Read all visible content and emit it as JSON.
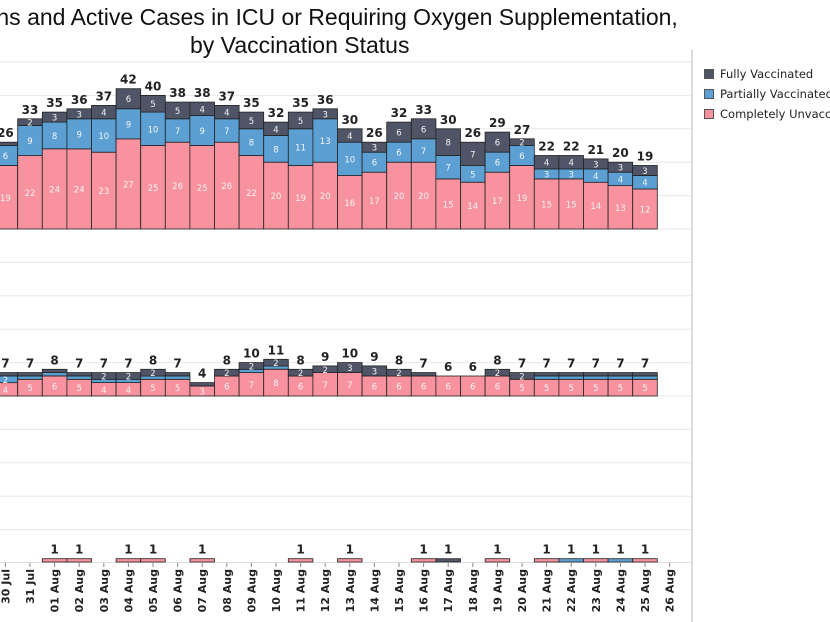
{
  "title": {
    "line1": "ths and Active Cases in ICU or Requiring Oxygen Supplementation,",
    "line2": "by Vaccination Status"
  },
  "legend": [
    {
      "name": "Fully Vaccinated",
      "color": "#4f5566"
    },
    {
      "name": "Partially Vaccinated",
      "color": "#5b9fd3"
    },
    {
      "name": "Completely Unvaccinated",
      "color": "#f7929e"
    }
  ],
  "chart_data": {
    "type": "bar",
    "stacked": true,
    "categories": [
      "30 Jul",
      "31 Jul",
      "01 Aug",
      "02 Aug",
      "03 Aug",
      "04 Aug",
      "05 Aug",
      "06 Aug",
      "07 Aug",
      "08 Aug",
      "09 Aug",
      "10 Aug",
      "11 Aug",
      "12 Aug",
      "13 Aug",
      "14 Aug",
      "15 Aug",
      "16 Aug",
      "17 Aug",
      "18 Aug",
      "19 Aug",
      "20 Aug",
      "21 Aug",
      "22 Aug",
      "23 Aug",
      "24 Aug",
      "25 Aug",
      "26 Aug"
    ],
    "ylim": [
      0,
      50
    ],
    "grid": true,
    "legend_position": "right",
    "panels": [
      {
        "totals": [
          26,
          33,
          35,
          36,
          37,
          42,
          40,
          38,
          38,
          37,
          35,
          32,
          35,
          36,
          30,
          26,
          32,
          33,
          30,
          26,
          29,
          27,
          22,
          22,
          21,
          20,
          19,
          null
        ],
        "series": [
          {
            "name": "Completely Unvaccinated",
            "values": [
              19,
              22,
              24,
              24,
              23,
              27,
              25,
              26,
              25,
              26,
              22,
              20,
              19,
              20,
              16,
              17,
              20,
              20,
              15,
              14,
              17,
              19,
              15,
              15,
              14,
              13,
              12,
              0
            ]
          },
          {
            "name": "Partially Vaccinated",
            "values": [
              6,
              9,
              8,
              9,
              10,
              9,
              10,
              7,
              9,
              7,
              8,
              8,
              11,
              13,
              10,
              6,
              6,
              7,
              7,
              5,
              6,
              6,
              3,
              3,
              4,
              4,
              4,
              0
            ]
          },
          {
            "name": "Fully Vaccinated",
            "values": [
              1,
              2,
              3,
              3,
              4,
              6,
              5,
              5,
              4,
              4,
              5,
              4,
              5,
              3,
              4,
              3,
              6,
              6,
              8,
              7,
              6,
              2,
              4,
              4,
              3,
              3,
              3,
              0
            ]
          }
        ]
      },
      {
        "totals": [
          7,
          7,
          8,
          7,
          7,
          7,
          8,
          7,
          4,
          8,
          10,
          11,
          8,
          9,
          10,
          9,
          8,
          7,
          6,
          6,
          8,
          7,
          7,
          7,
          7,
          7,
          7,
          null
        ],
        "series": [
          {
            "name": "Completely Unvaccinated",
            "values": [
              4,
              5,
              6,
              5,
              4,
              4,
              5,
              5,
              3,
              6,
              7,
              8,
              6,
              7,
              7,
              6,
              6,
              6,
              6,
              6,
              6,
              5,
              5,
              5,
              5,
              5,
              5,
              0
            ]
          },
          {
            "name": "Partially Vaccinated",
            "values": [
              2,
              1,
              1,
              1,
              1,
              1,
              1,
              1,
              0,
              0,
              1,
              1,
              0,
              0,
              0,
              0,
              0,
              0,
              0,
              0,
              0,
              0,
              1,
              1,
              1,
              1,
              1,
              0
            ]
          },
          {
            "name": "Fully Vaccinated",
            "values": [
              1,
              1,
              1,
              1,
              2,
              2,
              2,
              1,
              1,
              2,
              2,
              2,
              2,
              2,
              3,
              3,
              2,
              1,
              0,
              0,
              2,
              2,
              1,
              1,
              1,
              1,
              1,
              0
            ]
          }
        ]
      },
      {
        "totals": [
          null,
          null,
          1,
          1,
          null,
          1,
          1,
          null,
          1,
          null,
          null,
          null,
          1,
          null,
          1,
          null,
          null,
          1,
          1,
          null,
          1,
          null,
          1,
          1,
          1,
          1,
          1,
          null
        ],
        "series": [
          {
            "name": "Completely Unvaccinated",
            "values": [
              0,
              0,
              1,
              1,
              0,
              1,
              1,
              0,
              1,
              0,
              0,
              0,
              1,
              0,
              1,
              0,
              0,
              1,
              0,
              0,
              1,
              0,
              1,
              0,
              1,
              0,
              1,
              0
            ]
          },
          {
            "name": "Partially Vaccinated",
            "values": [
              0,
              0,
              0,
              0,
              0,
              0,
              0,
              0,
              0,
              0,
              0,
              0,
              0,
              0,
              0,
              0,
              0,
              0,
              0,
              0,
              0,
              0,
              0,
              1,
              0,
              1,
              0,
              0
            ]
          },
          {
            "name": "Fully Vaccinated",
            "values": [
              0,
              0,
              0,
              0,
              0,
              0,
              0,
              0,
              0,
              0,
              0,
              0,
              0,
              0,
              0,
              0,
              0,
              0,
              1,
              0,
              0,
              0,
              0,
              0,
              0,
              0,
              0,
              0
            ]
          }
        ]
      }
    ]
  }
}
